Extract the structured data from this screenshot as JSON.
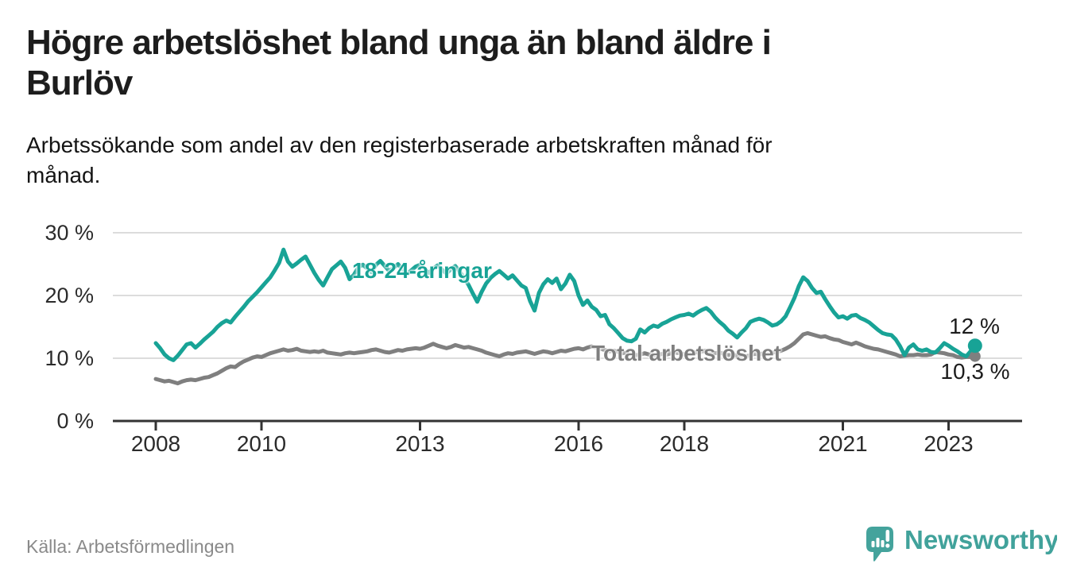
{
  "header": {
    "title_line1": "Högre arbetslöshet bland unga än bland äldre i",
    "title_line2": "Burlöv",
    "subtitle_line1": "Arbetssökande som andel av den registerbaserade arbetskraften månad för",
    "subtitle_line2": "månad."
  },
  "chart": {
    "series_label_young": "18-24-åringar",
    "series_label_total": "Total arbetslöshet",
    "end_label_young": "12 %",
    "end_label_total": "10,3 %"
  },
  "chart_data": {
    "type": "line",
    "title": "Högre arbetslöshet bland unga än bland äldre i Burlöv",
    "subtitle": "Arbetssökande som andel av den registerbaserade arbetskraften månad för månad.",
    "unit": "percent of registered labour force",
    "frequency": "monthly",
    "x_start": "2008-01",
    "x_end": "2023-07",
    "ylim": [
      0,
      32
    ],
    "grid": "horizontal",
    "legend_position": "inline-labels",
    "y_ticks": [
      {
        "value": 0,
        "label": "0 %"
      },
      {
        "value": 10,
        "label": "10 %"
      },
      {
        "value": 20,
        "label": "20 %"
      },
      {
        "value": 30,
        "label": "30 %"
      }
    ],
    "x_ticks": [
      {
        "year": 2008,
        "label": "2008"
      },
      {
        "year": 2010,
        "label": "2010"
      },
      {
        "year": 2013,
        "label": "2013"
      },
      {
        "year": 2016,
        "label": "2016"
      },
      {
        "year": 2018,
        "label": "2018"
      },
      {
        "year": 2021,
        "label": "2021"
      },
      {
        "year": 2023,
        "label": "2023"
      }
    ],
    "series": [
      {
        "name": "Total arbetslöshet",
        "color": "#7f7f7f",
        "end_dot_radius": 7,
        "last_value": 10.3,
        "end_label": "10,3 %",
        "values": [
          6.7,
          6.5,
          6.3,
          6.4,
          6.2,
          6.0,
          6.3,
          6.5,
          6.6,
          6.5,
          6.7,
          6.9,
          7.0,
          7.3,
          7.6,
          8.0,
          8.4,
          8.7,
          8.6,
          9.1,
          9.5,
          9.8,
          10.1,
          10.3,
          10.2,
          10.5,
          10.8,
          11.0,
          11.2,
          11.4,
          11.2,
          11.3,
          11.5,
          11.2,
          11.1,
          11.0,
          11.1,
          11.0,
          11.2,
          10.9,
          10.8,
          10.7,
          10.6,
          10.8,
          10.9,
          10.8,
          10.9,
          11.0,
          11.1,
          11.3,
          11.4,
          11.2,
          11.0,
          10.9,
          11.1,
          11.3,
          11.2,
          11.4,
          11.5,
          11.6,
          11.5,
          11.7,
          12.0,
          12.3,
          12.0,
          11.8,
          11.6,
          11.8,
          12.1,
          11.9,
          11.7,
          11.8,
          11.6,
          11.4,
          11.2,
          10.9,
          10.7,
          10.5,
          10.3,
          10.6,
          10.8,
          10.7,
          10.9,
          11.0,
          11.1,
          10.9,
          10.7,
          10.9,
          11.1,
          11.0,
          10.8,
          11.0,
          11.2,
          11.1,
          11.3,
          11.5,
          11.6,
          11.4,
          11.7,
          11.9,
          11.7,
          11.5,
          11.3,
          11.1,
          11.2,
          11.0,
          10.8,
          10.9,
          10.7,
          10.5,
          10.6,
          10.8,
          10.6,
          10.4,
          10.5,
          10.7,
          10.6,
          10.8,
          10.9,
          10.8,
          10.6,
          10.8,
          11.0,
          10.9,
          11.1,
          11.2,
          11.0,
          10.8,
          10.9,
          10.7,
          10.5,
          10.6,
          10.4,
          10.5,
          10.3,
          10.5,
          10.7,
          10.6,
          10.8,
          10.7,
          10.9,
          11.0,
          11.2,
          11.5,
          11.9,
          12.4,
          13.1,
          13.8,
          14.0,
          13.8,
          13.6,
          13.4,
          13.5,
          13.2,
          13.0,
          12.9,
          12.6,
          12.4,
          12.2,
          12.5,
          12.2,
          11.9,
          11.7,
          11.5,
          11.4,
          11.2,
          11.0,
          10.8,
          10.6,
          10.3,
          10.4,
          10.5,
          10.5,
          10.6,
          10.5,
          10.5,
          10.6,
          11.0,
          10.9,
          10.8,
          10.6,
          10.5,
          10.2,
          10.1,
          10.2,
          10.2,
          10.3
        ]
      },
      {
        "name": "18-24-åringar",
        "color": "#18a396",
        "end_dot_radius": 9,
        "last_value": 12.0,
        "end_label": "12 %",
        "values": [
          12.4,
          11.6,
          10.6,
          10.0,
          9.7,
          10.4,
          11.3,
          12.2,
          12.4,
          11.7,
          12.3,
          13.0,
          13.6,
          14.2,
          15.0,
          15.6,
          16.0,
          15.7,
          16.6,
          17.4,
          18.2,
          19.1,
          19.8,
          20.5,
          21.3,
          22.1,
          22.9,
          24.0,
          25.2,
          27.3,
          25.4,
          24.6,
          25.1,
          25.7,
          26.2,
          24.9,
          23.6,
          22.5,
          21.6,
          22.9,
          24.2,
          24.8,
          25.4,
          24.4,
          22.6,
          23.3,
          24.5,
          24.9,
          24.3,
          23.7,
          24.9,
          25.5,
          24.7,
          23.9,
          24.4,
          25.0,
          24.2,
          23.4,
          24.0,
          24.6,
          24.9,
          24.2,
          23.6,
          24.3,
          24.8,
          24.1,
          23.5,
          24.2,
          24.7,
          23.8,
          22.8,
          21.7,
          20.3,
          19.0,
          20.6,
          21.9,
          22.8,
          23.4,
          23.9,
          23.3,
          22.7,
          23.2,
          22.4,
          21.6,
          21.2,
          19.1,
          17.6,
          20.4,
          21.8,
          22.6,
          22.0,
          22.7,
          21.0,
          21.9,
          23.3,
          22.3,
          20.0,
          18.5,
          19.2,
          18.2,
          17.7,
          16.7,
          16.9,
          15.4,
          14.8,
          14.0,
          13.2,
          12.8,
          12.7,
          13.1,
          14.6,
          14.1,
          14.8,
          15.2,
          15.0,
          15.5,
          15.8,
          16.2,
          16.5,
          16.8,
          16.9,
          17.1,
          16.8,
          17.3,
          17.7,
          18.0,
          17.4,
          16.5,
          15.8,
          15.2,
          14.4,
          13.9,
          13.3,
          14.1,
          14.8,
          15.8,
          16.1,
          16.3,
          16.1,
          15.7,
          15.2,
          15.4,
          15.9,
          16.7,
          18.1,
          19.6,
          21.5,
          22.9,
          22.3,
          21.2,
          20.4,
          20.6,
          19.4,
          18.3,
          17.3,
          16.5,
          16.7,
          16.3,
          16.8,
          16.9,
          16.4,
          16.1,
          15.7,
          15.1,
          14.5,
          14.0,
          13.8,
          13.7,
          13.0,
          11.9,
          10.5,
          11.7,
          12.2,
          11.4,
          11.2,
          11.4,
          11.0,
          10.9,
          11.6,
          12.4,
          12.0,
          11.5,
          11.1,
          10.6,
          10.3,
          11.1,
          12.0
        ]
      }
    ],
    "source": "Källa: Arbetsförmedlingen"
  },
  "footer": {
    "source": "Källa: Arbetsförmedlingen",
    "brand": "Newsworthy"
  },
  "colors": {
    "accent_teal": "#18a396",
    "series_gray": "#7f7f7f",
    "axis": "#333333",
    "gridline": "#dcdcdc",
    "logo_teal": "#44a39c"
  }
}
